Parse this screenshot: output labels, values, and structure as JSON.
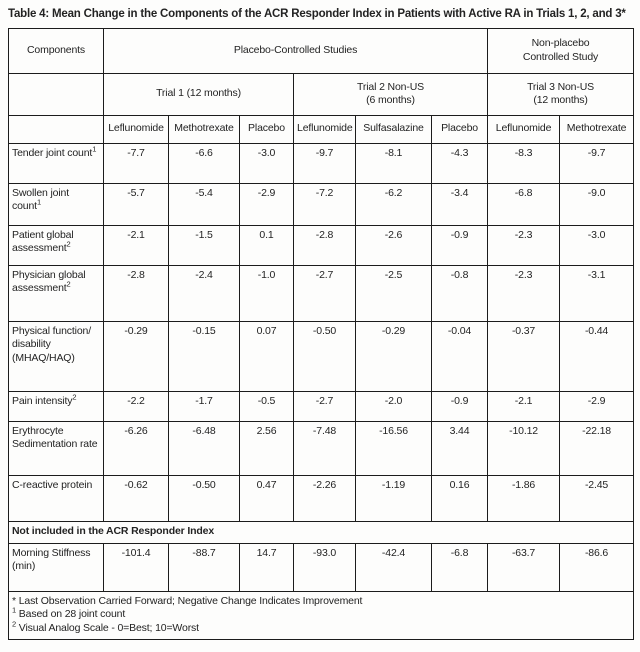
{
  "title": "Table 4: Mean Change in the Components of the ACR Responder Index in Patients with Active RA in Trials 1, 2, and 3*",
  "table": {
    "header": {
      "components_label": "Components",
      "group1": "Placebo-Controlled Studies",
      "group2_lines": [
        "Non-placebo",
        "Controlled Study"
      ],
      "trial1": "Trial 1 (12 months)",
      "trial2_lines": [
        "Trial 2 Non-US",
        "(6 months)"
      ],
      "trial3_lines": [
        "Trial 3 Non-US",
        "(12 months)"
      ],
      "drugs": [
        "Leflunomide",
        "Methotrexate",
        "Placebo",
        "Leflunomide",
        "Sulfasalazine",
        "Placebo",
        "Leflunomide",
        "Methotrexate"
      ]
    },
    "rows": [
      {
        "label": "Tender joint count",
        "sup": "1",
        "values": [
          "-7.7",
          "-6.6",
          "-3.0",
          "-9.7",
          "-8.1",
          "-4.3",
          "-8.3",
          "-9.7"
        ]
      },
      {
        "label": "Swollen joint count",
        "sup": "1",
        "values": [
          "-5.7",
          "-5.4",
          "-2.9",
          "-7.2",
          "-6.2",
          "-3.4",
          "-6.8",
          "-9.0"
        ]
      },
      {
        "label": "Patient global assessment",
        "sup": "2",
        "values": [
          "-2.1",
          "-1.5",
          "0.1",
          "-2.8",
          "-2.6",
          "-0.9",
          "-2.3",
          "-3.0"
        ]
      },
      {
        "label": "Physician global assessment",
        "sup": "2",
        "values": [
          "-2.8",
          "-2.4",
          "-1.0",
          "-2.7",
          "-2.5",
          "-0.8",
          "-2.3",
          "-3.1"
        ]
      },
      {
        "label": "Physical function/ disability (MHAQ/HAQ)",
        "sup": "",
        "values": [
          "-0.29",
          "-0.15",
          "0.07",
          "-0.50",
          "-0.29",
          "-0.04",
          "-0.37",
          "-0.44"
        ]
      },
      {
        "label": "Pain intensity",
        "sup": "2",
        "values": [
          "-2.2",
          "-1.7",
          "-0.5",
          "-2.7",
          "-2.0",
          "-0.9",
          "-2.1",
          "-2.9"
        ]
      },
      {
        "label": "Erythrocyte Sedimentation rate",
        "sup": "",
        "values": [
          "-6.26",
          "-6.48",
          "2.56",
          "-7.48",
          "-16.56",
          "3.44",
          "-10.12",
          "-22.18"
        ]
      },
      {
        "label": "C-reactive protein",
        "sup": "",
        "values": [
          "-0.62",
          "-0.50",
          "0.47",
          "-2.26",
          "-1.19",
          "0.16",
          "-1.86",
          "-2.45"
        ]
      }
    ],
    "section_header": "Not included in the ACR Responder Index",
    "extra_rows": [
      {
        "label": "Morning Stiffness (min)",
        "sup": "",
        "values": [
          "-101.4",
          "-88.7",
          "14.7",
          "-93.0",
          "-42.4",
          "-6.8",
          "-63.7",
          "-86.6"
        ]
      }
    ],
    "footnotes": [
      {
        "marker": "*",
        "sup": false,
        "text": "Last Observation Carried Forward; Negative Change Indicates Improvement"
      },
      {
        "marker": "1",
        "sup": true,
        "text": "Based on 28 joint count"
      },
      {
        "marker": "2",
        "sup": true,
        "text": "Visual Analog Scale - 0=Best; 10=Worst"
      }
    ]
  }
}
